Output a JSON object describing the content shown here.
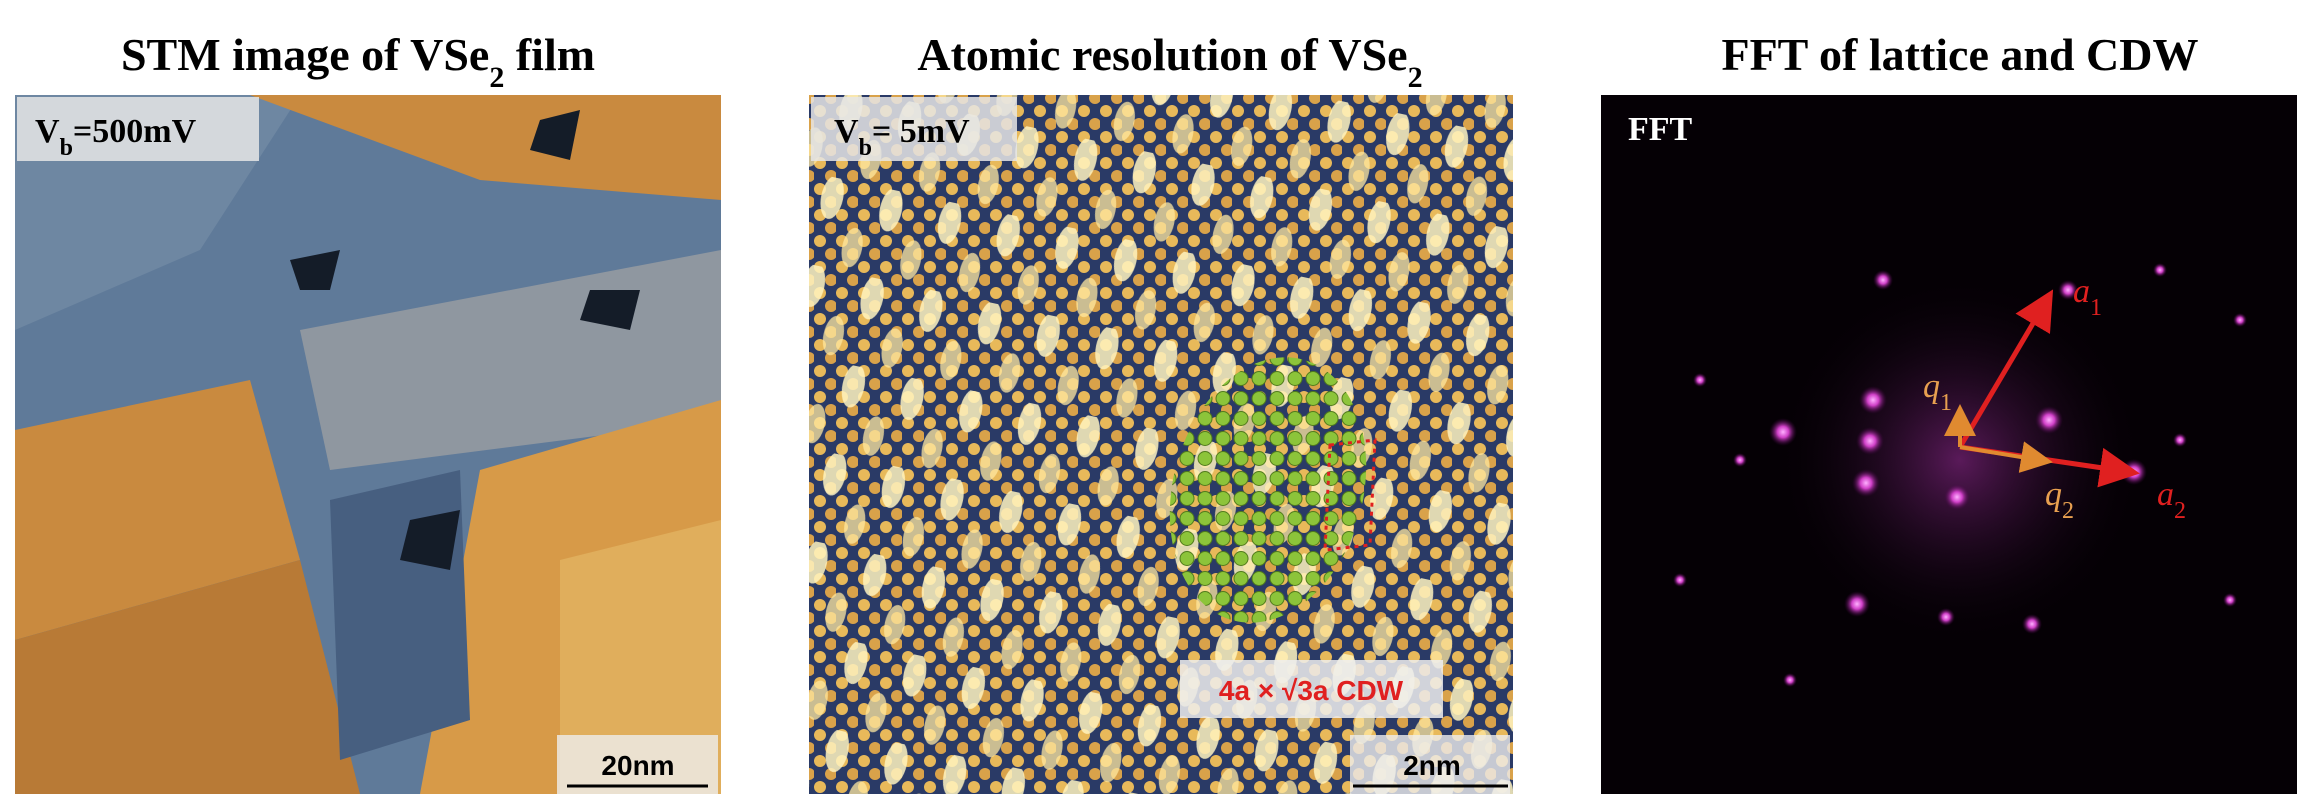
{
  "panels": [
    {
      "title": {
        "text": "STM image of VSe",
        "sub": "2",
        "after": " film"
      },
      "bias": {
        "text": "V",
        "sub": "b",
        "after": "=500mV"
      },
      "scale_bar": "20nm"
    },
    {
      "title": {
        "text": "Atomic resolution of VSe",
        "sub": "2"
      },
      "bias": {
        "text": "V",
        "sub": "b",
        "after": "= 5mV"
      },
      "annotation": "4a × √3a CDW",
      "scale_bar": "2nm"
    },
    {
      "title": {
        "text": "FFT of lattice and CDW"
      },
      "label": "FFT",
      "vectors": [
        {
          "text": "a",
          "sub": "1"
        },
        {
          "text": "a",
          "sub": "2"
        },
        {
          "text": "q",
          "sub": "1"
        },
        {
          "text": "q",
          "sub": "2"
        }
      ]
    }
  ]
}
